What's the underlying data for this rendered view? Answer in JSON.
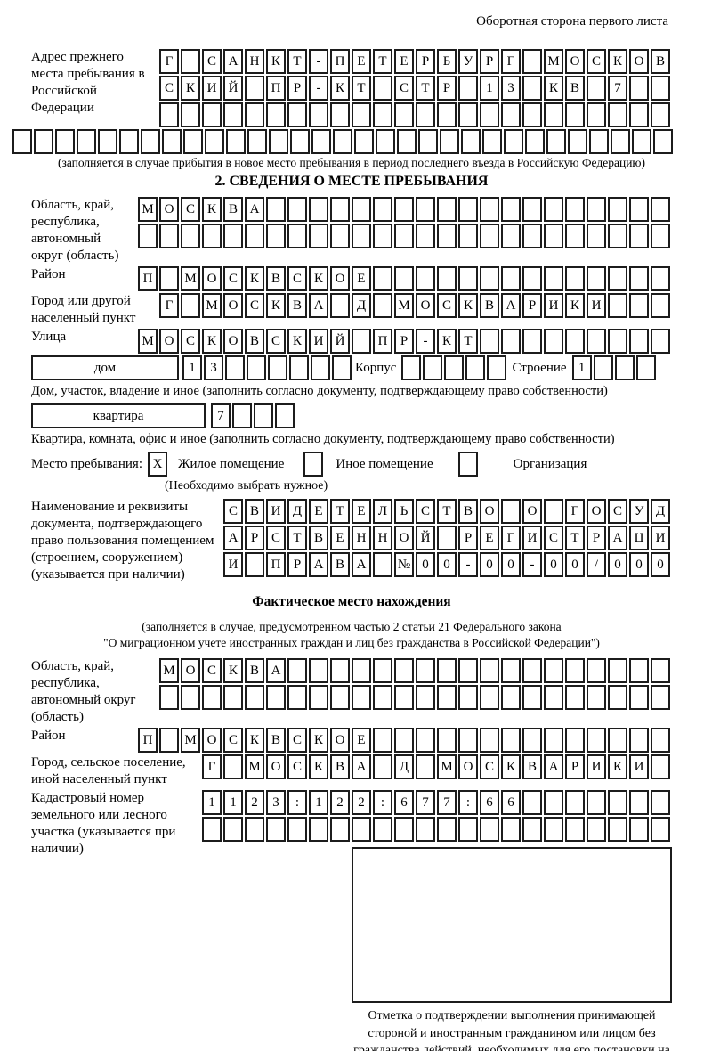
{
  "page": {
    "corner_note": "Оборотная сторона первого листа"
  },
  "prev_address": {
    "label": "Адрес прежнего места пребывания в Российской Федерации",
    "row1": [
      "Г",
      "",
      "С",
      "А",
      "Н",
      "К",
      "Т",
      "-",
      "П",
      "Е",
      "Т",
      "Е",
      "Р",
      "Б",
      "У",
      "Р",
      "Г",
      "",
      "М",
      "О",
      "С",
      "К",
      "О",
      "В"
    ],
    "row2": [
      "С",
      "К",
      "И",
      "Й",
      "",
      "П",
      "Р",
      "-",
      "К",
      "Т",
      "",
      "С",
      "Т",
      "Р",
      "",
      "1",
      "3",
      "",
      "К",
      "В",
      "",
      "7",
      "",
      ""
    ],
    "row3": [
      "",
      "",
      "",
      "",
      "",
      "",
      "",
      "",
      "",
      "",
      "",
      "",
      "",
      "",
      "",
      "",
      "",
      "",
      "",
      "",
      "",
      "",
      "",
      ""
    ],
    "overflow_row": [
      "",
      "",
      "",
      "",
      "",
      "",
      "",
      "",
      "",
      "",
      "",
      "",
      "",
      "",
      "",
      "",
      "",
      "",
      "",
      "",
      "",
      "",
      "",
      "",
      "",
      "",
      "",
      "",
      "",
      "",
      ""
    ],
    "note": "(заполняется в случае прибытия в новое место пребывания в период последнего въезда в Российскую Федерацию)"
  },
  "section2": {
    "heading": "2. СВЕДЕНИЯ О МЕСТЕ ПРЕБЫВАНИЯ",
    "oblast": {
      "label": "Область, край, республика, автономный округ (область)",
      "row1": [
        "М",
        "О",
        "С",
        "К",
        "В",
        "А",
        "",
        "",
        "",
        "",
        "",
        "",
        "",
        "",
        "",
        "",
        "",
        "",
        "",
        "",
        "",
        "",
        "",
        "",
        ""
      ],
      "row2": [
        "",
        "",
        "",
        "",
        "",
        "",
        "",
        "",
        "",
        "",
        "",
        "",
        "",
        "",
        "",
        "",
        "",
        "",
        "",
        "",
        "",
        "",
        "",
        "",
        ""
      ]
    },
    "raion": {
      "label": "Район",
      "cells": [
        "П",
        "",
        "М",
        "О",
        "С",
        "К",
        "В",
        "С",
        "К",
        "О",
        "Е",
        "",
        "",
        "",
        "",
        "",
        "",
        "",
        "",
        "",
        "",
        "",
        "",
        "",
        ""
      ]
    },
    "gorod": {
      "label": "Город или другой населенный пункт",
      "cells": [
        "Г",
        "",
        "М",
        "О",
        "С",
        "К",
        "В",
        "А",
        "",
        "Д",
        "",
        "М",
        "О",
        "С",
        "К",
        "В",
        "А",
        "Р",
        "И",
        "К",
        "И",
        "",
        "",
        ""
      ]
    },
    "ulitsa": {
      "label": "Улица",
      "cells": [
        "М",
        "О",
        "С",
        "К",
        "О",
        "В",
        "С",
        "К",
        "И",
        "Й",
        "",
        "П",
        "Р",
        "-",
        "К",
        "Т",
        "",
        "",
        "",
        "",
        "",
        "",
        "",
        "",
        ""
      ]
    },
    "dom": {
      "box_label": "дом",
      "cells": [
        "1",
        "3",
        "",
        "",
        "",
        "",
        "",
        ""
      ],
      "korpus_label": "Корпус",
      "korpus_cells": [
        "",
        "",
        "",
        "",
        ""
      ],
      "stroenie_label": "Строение",
      "stroenie_cells": [
        "1",
        "",
        "",
        ""
      ],
      "caption": "Дом, участок, владение и иное (заполнить согласно документу, подтверждающему право собственности)"
    },
    "kvartira": {
      "box_label": "квартира",
      "cells": [
        "7",
        "",
        "",
        ""
      ],
      "caption": "Квартира, комната, офис и иное (заполнить согласно документу, подтверждающему право собственности)"
    },
    "mesto": {
      "label": "Место пребывания:",
      "options": [
        {
          "label": "Жилое помещение",
          "mark": "X"
        },
        {
          "label": "Иное помещение",
          "mark": ""
        },
        {
          "label": "Организация",
          "mark": ""
        }
      ],
      "note": "(Необходимо выбрать нужное)"
    },
    "doc": {
      "label": "Наименование и реквизиты документа, подтверждающего право пользования помещением (строением, сооружением) (указывается при наличии)",
      "row1": [
        "С",
        "В",
        "И",
        "Д",
        "Е",
        "Т",
        "Е",
        "Л",
        "Ь",
        "С",
        "Т",
        "В",
        "О",
        "",
        "О",
        "",
        "Г",
        "О",
        "С",
        "У",
        "Д"
      ],
      "row2": [
        "А",
        "Р",
        "С",
        "Т",
        "В",
        "Е",
        "Н",
        "Н",
        "О",
        "Й",
        "",
        "Р",
        "Е",
        "Г",
        "И",
        "С",
        "Т",
        "Р",
        "А",
        "Ц",
        "И"
      ],
      "row3": [
        "И",
        "",
        "П",
        "Р",
        "А",
        "В",
        "А",
        "",
        "№",
        "0",
        "0",
        "-",
        "0",
        "0",
        "-",
        "0",
        "0",
        "/",
        "0",
        "0",
        "0"
      ]
    }
  },
  "fact": {
    "heading": "Фактическое место нахождения",
    "note_line1": "(заполняется в случае, предусмотренном частью 2 статьи 21 Федерального закона",
    "note_line2": "\"О миграционном учете иностранных граждан и лиц без гражданства в Российской Федерации\")",
    "oblast": {
      "label": "Область, край, республика, автономный округ (область)",
      "row1": [
        "М",
        "О",
        "С",
        "К",
        "В",
        "А",
        "",
        "",
        "",
        "",
        "",
        "",
        "",
        "",
        "",
        "",
        "",
        "",
        "",
        "",
        "",
        "",
        "",
        ""
      ],
      "row2": [
        "",
        "",
        "",
        "",
        "",
        "",
        "",
        "",
        "",
        "",
        "",
        "",
        "",
        "",
        "",
        "",
        "",
        "",
        "",
        "",
        "",
        "",
        "",
        ""
      ]
    },
    "raion": {
      "label": "Район",
      "cells": [
        "П",
        "",
        "М",
        "О",
        "С",
        "К",
        "В",
        "С",
        "К",
        "О",
        "Е",
        "",
        "",
        "",
        "",
        "",
        "",
        "",
        "",
        "",
        "",
        "",
        "",
        "",
        ""
      ]
    },
    "gorod": {
      "label": "Город, сельское поселение, иной населенный пункт",
      "cells": [
        "Г",
        "",
        "М",
        "О",
        "С",
        "К",
        "В",
        "А",
        "",
        "Д",
        "",
        "М",
        "О",
        "С",
        "К",
        "В",
        "А",
        "Р",
        "И",
        "К",
        "И",
        ""
      ]
    },
    "kadastr": {
      "label": "Кадастровый номер земельного или лесного участка (указывается при наличии)",
      "row1": [
        "1",
        "1",
        "2",
        "3",
        ":",
        "1",
        "2",
        "2",
        ":",
        "6",
        "7",
        "7",
        ":",
        "6",
        "6",
        "",
        "",
        "",
        "",
        "",
        "",
        ""
      ],
      "row2": [
        "",
        "",
        "",
        "",
        "",
        "",
        "",
        "",
        "",
        "",
        "",
        "",
        "",
        "",
        "",
        "",
        "",
        "",
        "",
        "",
        "",
        ""
      ]
    },
    "stamp_caption": "Отметка о подтверждении выполнения принимающей стороной и иностранным гражданином или лицом без гражданства действий, необходимых для его постановки на учет по месту пребывания"
  }
}
